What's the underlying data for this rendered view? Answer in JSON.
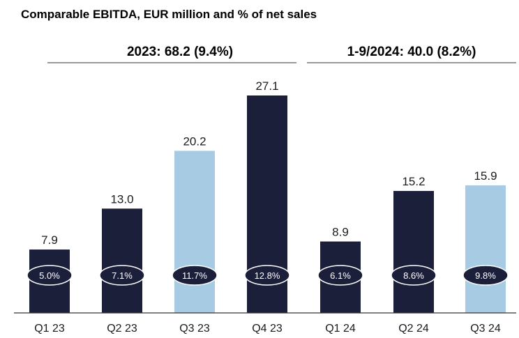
{
  "chart_data": {
    "type": "bar",
    "title": "Comparable EBITDA, EUR million and % of net sales",
    "periods": [
      {
        "label": "2023: 68.2 (9.4%)",
        "categories": [
          "Q1 23",
          "Q2 23",
          "Q3 23",
          "Q4 23"
        ]
      },
      {
        "label": "1-9/2024: 40.0 (8.2%)",
        "categories": [
          "Q1 24",
          "Q2 24",
          "Q3 24"
        ]
      }
    ],
    "categories": [
      "Q1 23",
      "Q2 23",
      "Q3 23",
      "Q4 23",
      "Q1 24",
      "Q2 24",
      "Q3 24"
    ],
    "values": [
      7.9,
      13.0,
      20.2,
      27.1,
      8.9,
      15.2,
      15.9
    ],
    "value_labels": [
      "7.9",
      "13.0",
      "20.2",
      "27.1",
      "8.9",
      "15.2",
      "15.9"
    ],
    "pct_labels": [
      "5.0%",
      "7.1%",
      "11.7%",
      "12.8%",
      "6.1%",
      "8.6%",
      "9.8%"
    ],
    "highlight": [
      false,
      false,
      true,
      false,
      false,
      false,
      true
    ],
    "ylim": [
      0,
      27.1
    ],
    "colors": {
      "bar": "#1c1f3a",
      "highlight": "#a6cbe3",
      "pill": "#1c1f3a",
      "pill_text": "#ffffff",
      "text": "#1b1b1b",
      "axis": "#333333"
    }
  }
}
